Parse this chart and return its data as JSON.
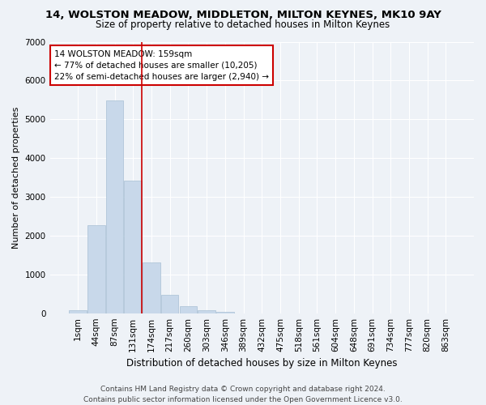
{
  "title": "14, WOLSTON MEADOW, MIDDLETON, MILTON KEYNES, MK10 9AY",
  "subtitle": "Size of property relative to detached houses in Milton Keynes",
  "xlabel": "Distribution of detached houses by size in Milton Keynes",
  "ylabel": "Number of detached properties",
  "bar_color": "#c8d8ea",
  "bar_edge_color": "#a8c0d4",
  "categories": [
    "1sqm",
    "44sqm",
    "87sqm",
    "131sqm",
    "174sqm",
    "217sqm",
    "260sqm",
    "303sqm",
    "346sqm",
    "389sqm",
    "432sqm",
    "475sqm",
    "518sqm",
    "561sqm",
    "604sqm",
    "648sqm",
    "691sqm",
    "734sqm",
    "777sqm",
    "820sqm",
    "863sqm"
  ],
  "values": [
    80,
    2270,
    5480,
    3420,
    1300,
    480,
    185,
    80,
    40,
    0,
    0,
    0,
    0,
    0,
    0,
    0,
    0,
    0,
    0,
    0,
    0
  ],
  "ylim": [
    0,
    7000
  ],
  "yticks": [
    0,
    1000,
    2000,
    3000,
    4000,
    5000,
    6000,
    7000
  ],
  "vline_pos": 3.47,
  "vline_color": "#cc0000",
  "annotation_line1": "14 WOLSTON MEADOW: 159sqm",
  "annotation_line2": "← 77% of detached houses are smaller (10,205)",
  "annotation_line3": "22% of semi-detached houses are larger (2,940) →",
  "annotation_box_color": "#ffffff",
  "annotation_box_edge_color": "#cc0000",
  "background_color": "#eef2f7",
  "grid_color": "#ffffff",
  "footer_line1": "Contains HM Land Registry data © Crown copyright and database right 2024.",
  "footer_line2": "Contains public sector information licensed under the Open Government Licence v3.0.",
  "title_fontsize": 9.5,
  "subtitle_fontsize": 8.5,
  "xlabel_fontsize": 8.5,
  "ylabel_fontsize": 8,
  "tick_fontsize": 7.5,
  "annotation_fontsize": 7.5,
  "footer_fontsize": 6.5
}
